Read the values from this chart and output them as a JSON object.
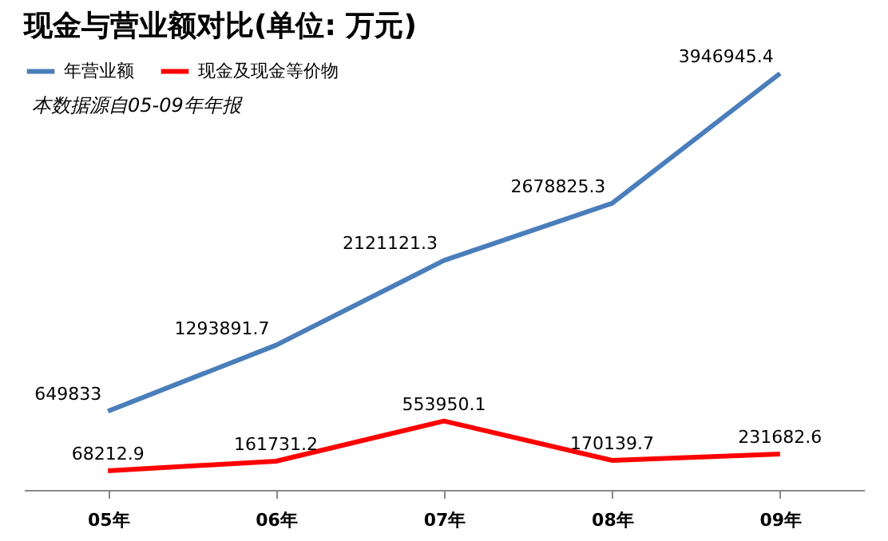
{
  "chart_data": {
    "type": "line",
    "title": "现金与营业额对比(单位: 万元)",
    "categories": [
      "05年",
      "06年",
      "07年",
      "08年",
      "09年"
    ],
    "series": [
      {
        "name": "年营业额",
        "color": "#4a7ebb",
        "values": [
          649833,
          1293891.7,
          2121121.3,
          2678825.3,
          3946945.4
        ]
      },
      {
        "name": "现金及现金等价物",
        "color": "#ff0000",
        "values": [
          68212.9,
          161731.2,
          553950.1,
          170139.7,
          231682.6
        ]
      }
    ],
    "annotations": [
      "本数据源自05-09年年报"
    ],
    "data_labels": true,
    "legend": "top left",
    "marker": "none"
  }
}
